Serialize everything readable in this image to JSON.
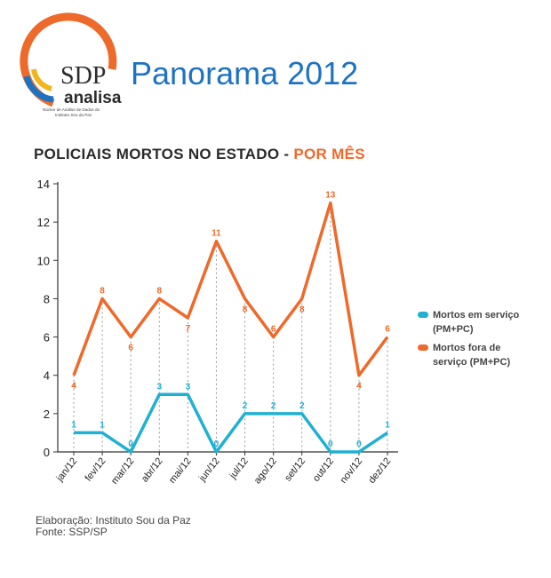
{
  "header": {
    "logo_main": "SDP",
    "logo_sub": "analisa",
    "logo_caption_1": "Núcleo de Análise de Dados do",
    "logo_caption_2": "Instituto Sou da Paz",
    "page_title": "Panorama 2012"
  },
  "chart_title": {
    "main": "POLICIAIS MORTOS NO ESTADO - ",
    "accent": "POR MÊS"
  },
  "colors": {
    "series_on_duty": "#1fb0d3",
    "series_off_duty": "#ee6a2b",
    "title_blue": "#1d73c2"
  },
  "chart_data": {
    "type": "line",
    "categories": [
      "jan/12",
      "fev/12",
      "mar/12",
      "abr/12",
      "mai/12",
      "jun/12",
      "jul/12",
      "ago/12",
      "set/12",
      "out/12",
      "nov/12",
      "dez/12"
    ],
    "ylim": [
      0,
      14
    ],
    "yticks": [
      0,
      2,
      4,
      6,
      8,
      10,
      12,
      14
    ],
    "grid": "vertical dashed drop lines",
    "legend_position": "right",
    "series": [
      {
        "name": "Mortos em serviço (PM+PC)",
        "values": [
          1,
          1,
          0,
          3,
          3,
          0,
          2,
          2,
          2,
          0,
          0,
          1
        ]
      },
      {
        "name": "Mortos fora de serviço (PM+PC)",
        "values": [
          4,
          8,
          6,
          8,
          7,
          11,
          8,
          6,
          8,
          13,
          4,
          6
        ]
      }
    ]
  },
  "legend": {
    "on_duty_line1": "Mortos em serviço",
    "on_duty_line2": "(PM+PC)",
    "off_duty_line1": "Mortos fora de",
    "off_duty_line2": "serviço (PM+PC)"
  },
  "footer": {
    "line1": "Elaboração: Instituto Sou da Paz",
    "line2": "Fonte: SSP/SP"
  }
}
